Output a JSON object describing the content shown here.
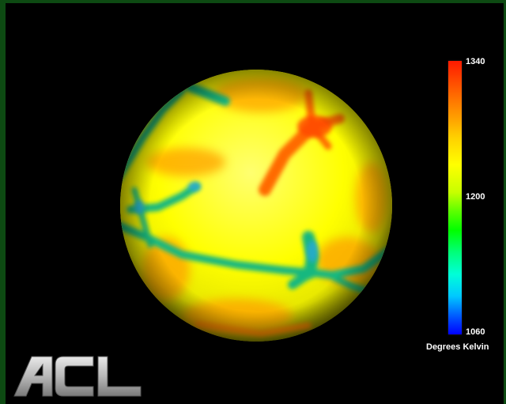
{
  "colorbar": {
    "max_label": "1340",
    "mid_label": "1200",
    "min_label": "1060",
    "unit_label": "Degrees Kelvin",
    "colors": [
      "#ff1a00",
      "#ffff00",
      "#00ff00",
      "#00c8ff",
      "#0000ff"
    ]
  },
  "logo": {
    "text": "ACL"
  },
  "colors": {
    "background": "#000000",
    "frame": "#0d4a12",
    "sphere_base": "#ffff00",
    "hot_streak": "#ff7a00",
    "cool_streak": "#1fb87a"
  }
}
